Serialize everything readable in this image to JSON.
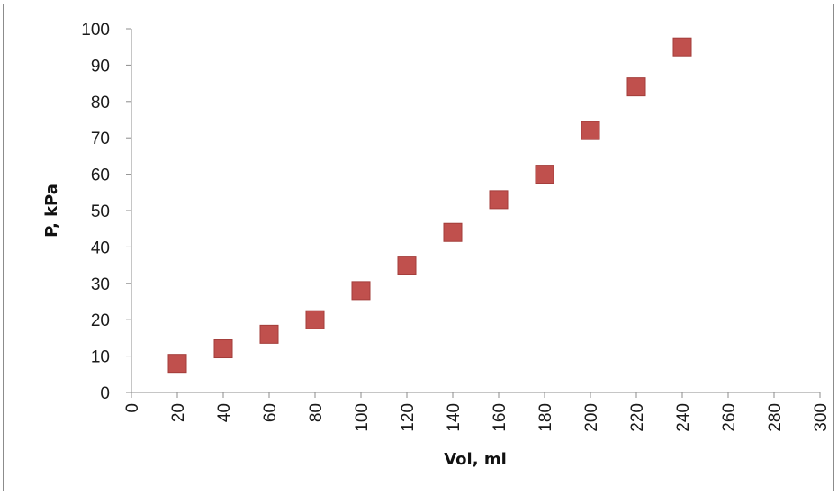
{
  "chart_data": {
    "type": "scatter",
    "title": "",
    "xlabel": "Vol, ml",
    "ylabel": "P, kPa",
    "xlim": [
      0,
      300
    ],
    "ylim": [
      0,
      100
    ],
    "x_ticks": [
      0,
      20,
      40,
      60,
      80,
      100,
      120,
      140,
      160,
      180,
      200,
      220,
      240,
      260,
      280,
      300
    ],
    "y_ticks": [
      0,
      10,
      20,
      30,
      40,
      50,
      60,
      70,
      80,
      90,
      100
    ],
    "grid": false,
    "legend": "none",
    "marker": "square",
    "marker_color": "#c0504d",
    "series": [
      {
        "x": [
          20,
          40,
          60,
          80,
          100,
          120,
          140,
          160,
          180,
          200,
          220,
          240
        ],
        "y": [
          8,
          12,
          16,
          20,
          28,
          35,
          44,
          53,
          60,
          72,
          84,
          95
        ]
      }
    ]
  }
}
